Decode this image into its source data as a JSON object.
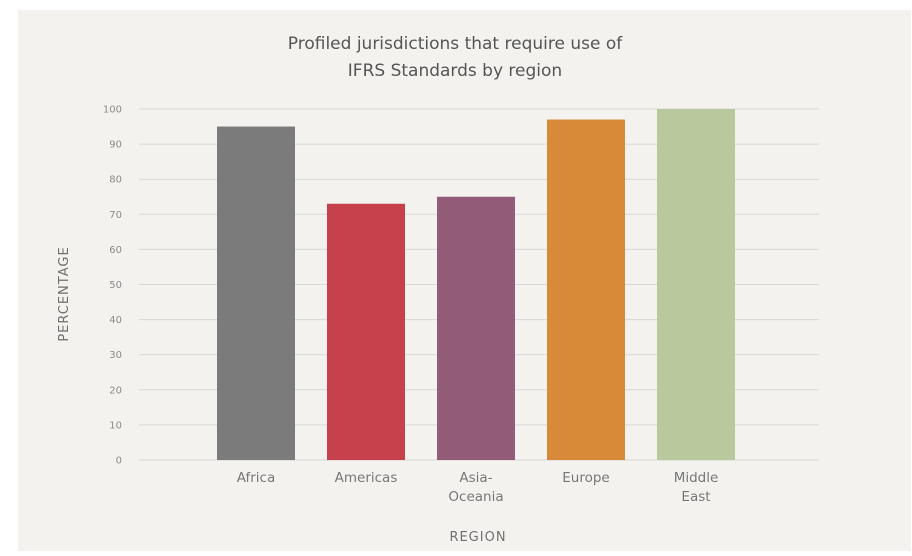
{
  "chart_data": {
    "type": "bar",
    "title_lines": [
      "Profiled jurisdictions that require use of",
      "IFRS Standards by region"
    ],
    "xlabel": "REGION",
    "ylabel": "PERCENTAGE",
    "ylim": [
      0,
      100
    ],
    "yticks": [
      0,
      10,
      20,
      30,
      40,
      50,
      60,
      70,
      80,
      90,
      100
    ],
    "grid": true,
    "categories": [
      [
        "Africa"
      ],
      [
        "Americas"
      ],
      [
        "Asia-",
        "Oceania"
      ],
      [
        "Europe"
      ],
      [
        "Middle",
        "East"
      ]
    ],
    "values": [
      95,
      73,
      75,
      97,
      100
    ],
    "colors": [
      "#7b7b7b",
      "#c6414b",
      "#925c79",
      "#d98a38",
      "#b7c99d"
    ]
  },
  "style": {
    "background": "#f3f2ef",
    "gridline": "#d7d7d5"
  }
}
